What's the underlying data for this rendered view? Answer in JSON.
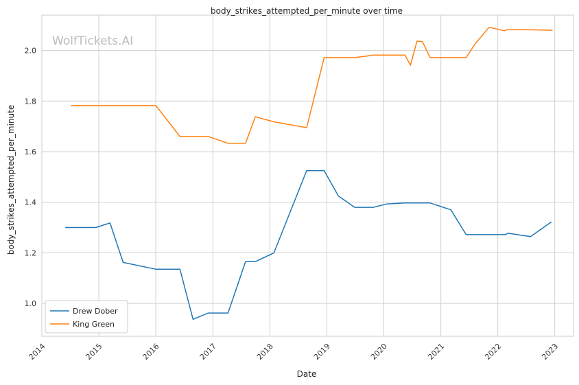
{
  "chart_data": {
    "type": "line",
    "title": "body_strikes_attempted_per_minute over time",
    "xlabel": "Date",
    "ylabel": "body_strikes_attempted_per_minute",
    "watermark": "WolfTickets.AI",
    "x_ticks": [
      "2014",
      "2015",
      "2016",
      "2017",
      "2018",
      "2019",
      "2020",
      "2021",
      "2022",
      "2023"
    ],
    "y_ticks": [
      "1.0",
      "1.2",
      "1.4",
      "1.6",
      "1.8",
      "2.0"
    ],
    "xlim": [
      "2014-01-01",
      "2023-05-01"
    ],
    "ylim": [
      0.87,
      2.14
    ],
    "grid": true,
    "legend_position": "bottom-left",
    "series": [
      {
        "name": "Drew Dober",
        "color": "#1f77b4",
        "points": [
          [
            "2014-05-31",
            1.3
          ],
          [
            "2014-12-13",
            1.3
          ],
          [
            "2015-03-14",
            1.318
          ],
          [
            "2015-06-06",
            1.162
          ],
          [
            "2016-01-02",
            1.135
          ],
          [
            "2016-06-04",
            1.135
          ],
          [
            "2016-08-27",
            0.937
          ],
          [
            "2016-12-03",
            0.962
          ],
          [
            "2017-04-08",
            0.962
          ],
          [
            "2017-07-29",
            1.165
          ],
          [
            "2017-09-30",
            1.165
          ],
          [
            "2018-01-27",
            1.2
          ],
          [
            "2018-08-25",
            1.525
          ],
          [
            "2018-12-15",
            1.525
          ],
          [
            "2019-03-16",
            1.425
          ],
          [
            "2019-06-29",
            1.38
          ],
          [
            "2019-10-26",
            1.38
          ],
          [
            "2020-01-18",
            1.393
          ],
          [
            "2020-05-16",
            1.397
          ],
          [
            "2020-10-24",
            1.397
          ],
          [
            "2021-03-06",
            1.37
          ],
          [
            "2021-06-12",
            1.272
          ],
          [
            "2022-02-20",
            1.272
          ],
          [
            "2022-03-05",
            1.278
          ],
          [
            "2022-07-30",
            1.264
          ],
          [
            "2022-12-10",
            1.322
          ]
        ]
      },
      {
        "name": "King Green",
        "color": "#ff7f0e",
        "points": [
          [
            "2014-07-06",
            1.782
          ],
          [
            "2016-01-02",
            1.782
          ],
          [
            "2016-06-04",
            1.66
          ],
          [
            "2016-12-03",
            1.66
          ],
          [
            "2017-04-08",
            1.633
          ],
          [
            "2017-07-29",
            1.633
          ],
          [
            "2017-09-30",
            1.738
          ],
          [
            "2018-01-27",
            1.718
          ],
          [
            "2018-08-25",
            1.695
          ],
          [
            "2018-12-15",
            1.972
          ],
          [
            "2019-06-29",
            1.972
          ],
          [
            "2019-08-31",
            1.977
          ],
          [
            "2019-10-26",
            1.982
          ],
          [
            "2020-05-16",
            1.982
          ],
          [
            "2020-06-20",
            1.942
          ],
          [
            "2020-08-01",
            2.037
          ],
          [
            "2020-09-05",
            2.035
          ],
          [
            "2020-10-24",
            1.972
          ],
          [
            "2021-06-12",
            1.972
          ],
          [
            "2021-08-07",
            2.025
          ],
          [
            "2021-11-06",
            2.092
          ],
          [
            "2022-02-12",
            2.078
          ],
          [
            "2022-02-26",
            2.082
          ],
          [
            "2022-07-30",
            2.082
          ],
          [
            "2022-12-17",
            2.08
          ]
        ]
      }
    ]
  }
}
